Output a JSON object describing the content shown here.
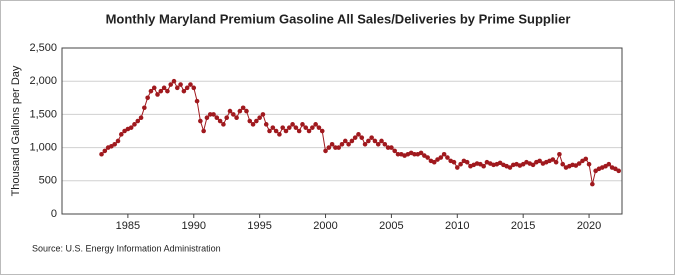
{
  "chart_data": {
    "type": "line",
    "title": "Monthly Maryland Premium Gasoline All Sales/Deliveries by Prime Supplier",
    "y_label": "Thousand Gallons per Day",
    "source": "Source: U.S. Energy Information Administration",
    "x": [
      1983,
      1983.25,
      1983.5,
      1983.75,
      1984,
      1984.25,
      1984.5,
      1984.75,
      1985,
      1985.25,
      1985.5,
      1985.75,
      1986,
      1986.25,
      1986.5,
      1986.75,
      1987,
      1987.25,
      1987.5,
      1987.75,
      1988,
      1988.25,
      1988.5,
      1988.75,
      1989,
      1989.25,
      1989.5,
      1989.75,
      1990,
      1990.25,
      1990.5,
      1990.75,
      1991,
      1991.25,
      1991.5,
      1991.75,
      1992,
      1992.25,
      1992.5,
      1992.75,
      1993,
      1993.25,
      1993.5,
      1993.75,
      1994,
      1994.25,
      1994.5,
      1994.75,
      1995,
      1995.25,
      1995.5,
      1995.75,
      1996,
      1996.25,
      1996.5,
      1996.75,
      1997,
      1997.25,
      1997.5,
      1997.75,
      1998,
      1998.25,
      1998.5,
      1998.75,
      1999,
      1999.25,
      1999.5,
      1999.75,
      2000,
      2000.25,
      2000.5,
      2000.75,
      2001,
      2001.25,
      2001.5,
      2001.75,
      2002,
      2002.25,
      2002.5,
      2002.75,
      2003,
      2003.25,
      2003.5,
      2003.75,
      2004,
      2004.25,
      2004.5,
      2004.75,
      2005,
      2005.25,
      2005.5,
      2005.75,
      2006,
      2006.25,
      2006.5,
      2006.75,
      2007,
      2007.25,
      2007.5,
      2007.75,
      2008,
      2008.25,
      2008.5,
      2008.75,
      2009,
      2009.25,
      2009.5,
      2009.75,
      2010,
      2010.25,
      2010.5,
      2010.75,
      2011,
      2011.25,
      2011.5,
      2011.75,
      2012,
      2012.25,
      2012.5,
      2012.75,
      2013,
      2013.25,
      2013.5,
      2013.75,
      2014,
      2014.25,
      2014.5,
      2014.75,
      2015,
      2015.25,
      2015.5,
      2015.75,
      2016,
      2016.25,
      2016.5,
      2016.75,
      2017,
      2017.25,
      2017.5,
      2017.75,
      2018,
      2018.25,
      2018.5,
      2018.75,
      2019,
      2019.25,
      2019.5,
      2019.75,
      2020,
      2020.25,
      2020.5,
      2020.75,
      2021,
      2021.25,
      2021.5,
      2021.75,
      2022,
      2022.25
    ],
    "series": [
      {
        "color": "#a0191e",
        "values": [
          900,
          950,
          1000,
          1020,
          1050,
          1100,
          1200,
          1250,
          1280,
          1300,
          1350,
          1400,
          1450,
          1600,
          1750,
          1850,
          1900,
          1800,
          1850,
          1900,
          1850,
          1950,
          2000,
          1900,
          1950,
          1850,
          1900,
          1950,
          1900,
          1700,
          1400,
          1250,
          1450,
          1500,
          1500,
          1450,
          1400,
          1350,
          1450,
          1550,
          1500,
          1450,
          1550,
          1600,
          1550,
          1400,
          1350,
          1400,
          1450,
          1500,
          1350,
          1250,
          1300,
          1250,
          1200,
          1300,
          1250,
          1300,
          1350,
          1300,
          1250,
          1350,
          1300,
          1250,
          1300,
          1350,
          1300,
          1250,
          950,
          1000,
          1050,
          1000,
          1000,
          1050,
          1100,
          1050,
          1100,
          1150,
          1200,
          1150,
          1050,
          1100,
          1150,
          1100,
          1050,
          1100,
          1050,
          1000,
          1000,
          950,
          900,
          900,
          880,
          900,
          920,
          900,
          900,
          920,
          880,
          850,
          800,
          780,
          820,
          850,
          900,
          850,
          800,
          780,
          700,
          750,
          800,
          780,
          720,
          740,
          760,
          750,
          720,
          780,
          760,
          740,
          750,
          770,
          740,
          720,
          700,
          740,
          750,
          730,
          750,
          780,
          760,
          740,
          780,
          800,
          760,
          780,
          800,
          820,
          780,
          900,
          750,
          700,
          720,
          740,
          730,
          760,
          800,
          830,
          750,
          450,
          650,
          680,
          700,
          720,
          750,
          700,
          680,
          650
        ]
      }
    ],
    "xlim": [
      1980,
      2022.5
    ],
    "xticks": [
      1985,
      1990,
      1995,
      2000,
      2005,
      2010,
      2015,
      2020
    ],
    "ylim": [
      0,
      2500
    ],
    "yticks": [
      0,
      500,
      {
        "value": 1000,
        "label": "1,000"
      },
      {
        "value": 1500,
        "label": "1,500"
      },
      {
        "value": 2000,
        "label": "2,000"
      },
      {
        "value": 2500,
        "label": "2,500"
      }
    ],
    "grid": true
  }
}
